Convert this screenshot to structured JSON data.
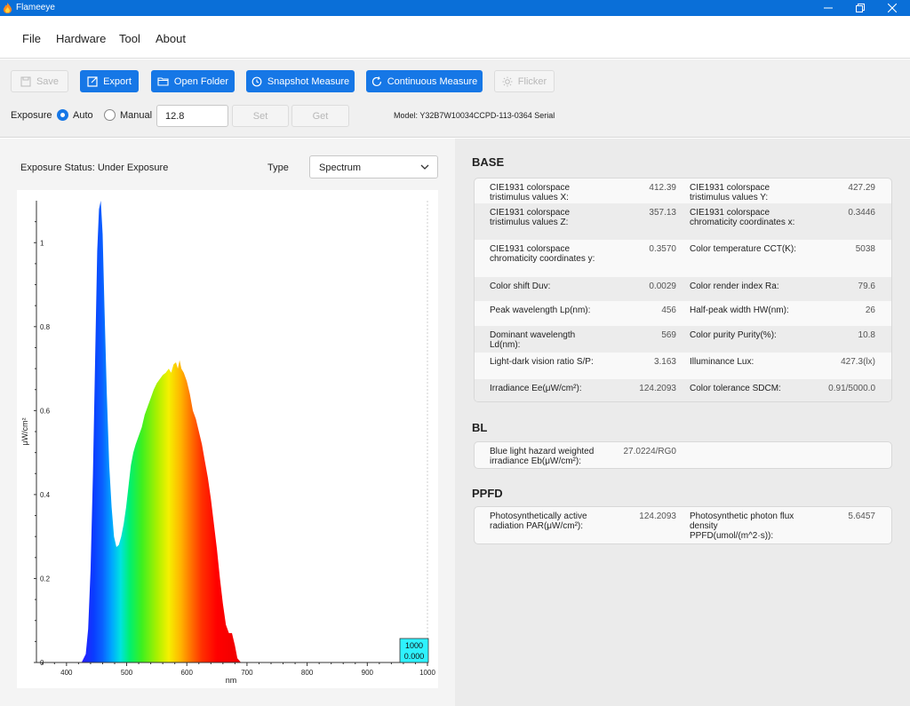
{
  "window": {
    "title": "Flameeye"
  },
  "menu": [
    "File",
    "Hardware",
    "Tool",
    "About"
  ],
  "toolbar": {
    "save_label": "Save",
    "export_label": "Export",
    "open_folder_label": "Open Folder",
    "snapshot_label": "Snapshot Measure",
    "continuous_label": "Continuous Measure",
    "flicker_label": "Flicker",
    "exposure_label": "Exposure",
    "auto_label": "Auto",
    "manual_label": "Manual",
    "exposure_value": "12.8",
    "set_label": "Set",
    "get_label": "Get",
    "model_text": "Model: Y32B7W10034CCPD-113-0364 Serial"
  },
  "left": {
    "exposure_status": "Exposure Status:  Under Exposure",
    "type_label": "Type",
    "type_value": "Spectrum"
  },
  "chart_data": {
    "type": "area",
    "xlabel": "nm",
    "ylabel": "μW/cm²",
    "xlim": [
      350,
      1000
    ],
    "ylim": [
      0,
      1.1
    ],
    "x_ticks": [
      400,
      500,
      600,
      700,
      800,
      900,
      1000
    ],
    "y_ticks": [
      "0",
      "0.2",
      "0.4",
      "0.6",
      "0.8",
      "1"
    ],
    "y_tick_values": [
      0,
      0.2,
      0.4,
      0.6,
      0.8,
      1
    ],
    "points": [
      [
        425,
        0
      ],
      [
        432,
        0.02
      ],
      [
        436,
        0.08
      ],
      [
        440,
        0.22
      ],
      [
        444,
        0.45
      ],
      [
        448,
        0.75
      ],
      [
        451,
        0.98
      ],
      [
        454,
        1.08
      ],
      [
        457,
        1.1
      ],
      [
        460,
        1.02
      ],
      [
        463,
        0.85
      ],
      [
        467,
        0.64
      ],
      [
        471,
        0.47
      ],
      [
        475,
        0.37
      ],
      [
        479,
        0.3
      ],
      [
        483,
        0.275
      ],
      [
        487,
        0.28
      ],
      [
        491,
        0.3
      ],
      [
        495,
        0.33
      ],
      [
        499,
        0.37
      ],
      [
        503,
        0.42
      ],
      [
        507,
        0.47
      ],
      [
        511,
        0.5
      ],
      [
        515,
        0.52
      ],
      [
        520,
        0.54
      ],
      [
        525,
        0.56
      ],
      [
        530,
        0.59
      ],
      [
        535,
        0.61
      ],
      [
        540,
        0.63
      ],
      [
        545,
        0.65
      ],
      [
        550,
        0.665
      ],
      [
        555,
        0.675
      ],
      [
        560,
        0.685
      ],
      [
        565,
        0.69
      ],
      [
        570,
        0.7
      ],
      [
        574,
        0.69
      ],
      [
        578,
        0.71
      ],
      [
        582,
        0.715
      ],
      [
        585,
        0.7
      ],
      [
        588,
        0.72
      ],
      [
        591,
        0.7
      ],
      [
        595,
        0.69
      ],
      [
        600,
        0.67
      ],
      [
        605,
        0.64
      ],
      [
        610,
        0.6
      ],
      [
        615,
        0.58
      ],
      [
        620,
        0.55
      ],
      [
        625,
        0.52
      ],
      [
        630,
        0.48
      ],
      [
        635,
        0.44
      ],
      [
        640,
        0.39
      ],
      [
        645,
        0.33
      ],
      [
        650,
        0.27
      ],
      [
        655,
        0.2
      ],
      [
        660,
        0.14
      ],
      [
        665,
        0.09
      ],
      [
        670,
        0.07
      ],
      [
        675,
        0.07
      ],
      [
        680,
        0.04
      ],
      [
        684,
        0.01
      ],
      [
        690,
        0
      ]
    ],
    "cursor_box": [
      "1000",
      "0.000"
    ]
  },
  "base": {
    "title": "BASE",
    "rows": [
      [
        "CIE1931 colorspace tristimulus values X:",
        "412.39",
        "CIE1931 colorspace tristimulus values Y:",
        "427.29"
      ],
      [
        "CIE1931 colorspace tristimulus values Z:",
        "357.13",
        "CIE1931 colorspace chromaticity coordinates x:",
        "0.3446"
      ],
      [
        "CIE1931 colorspace chromaticity coordinates y:",
        "0.3570",
        "Color temperature CCT(K):",
        "5038"
      ],
      [
        "Color shift Duv:",
        "0.0029",
        "Color render index Ra:",
        "79.6"
      ],
      [
        "Peak wavelength Lp(nm):",
        "456",
        "Half-peak width HW(nm):",
        "26"
      ],
      [
        "Dominant wavelength Ld(nm):",
        "569",
        "Color purity Purity(%):",
        "10.8"
      ],
      [
        "Light-dark vision ratio S/P:",
        "3.163",
        "Illuminance Lux:",
        "427.3(lx)"
      ],
      [
        "Irradiance Ee(μW/cm²):",
        "124.2093",
        "Color tolerance SDCM:",
        "0.91/5000.0"
      ]
    ]
  },
  "bl": {
    "title": "BL",
    "rows": [
      [
        "Blue light hazard weighted irradiance Eb(μW/cm²):",
        "27.0224/RG0",
        "",
        ""
      ]
    ]
  },
  "ppfd": {
    "title": "PPFD",
    "rows": [
      [
        "Photosynthetically active radiation PAR(μW/cm²):",
        "124.2093",
        "Photosynthetic photon flux density PPFD(umol/(m^2·s)):",
        "5.6457"
      ]
    ]
  }
}
